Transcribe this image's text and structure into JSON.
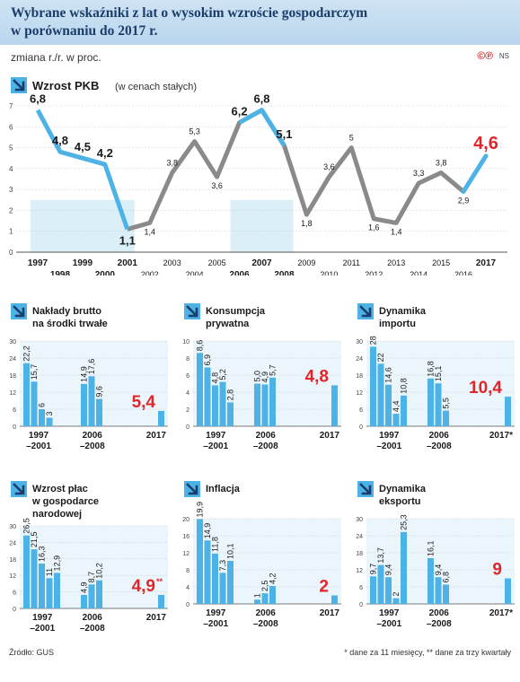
{
  "title_line1": "Wybrane wskaźniki z lat o wysokim wzroście gospodarczym",
  "title_line2": "w porównaniu do 2017 r.",
  "subtitle": "zmiana r./r. w proc.",
  "logo": "©℗",
  "logo_suffix": "NS",
  "source": "Źródło: GUS",
  "footnote": "* dane za 11 miesięcy, ** dane za trzy kwartały",
  "colors": {
    "accent": "#4db3e6",
    "highlight": "#e0262b",
    "gray": "#8a8a8a",
    "title": "#1b3d6b"
  },
  "chart_data": [
    {
      "type": "line",
      "title": "Wzrost PKB",
      "title_note": "(w cenach stałych)",
      "x": [
        "1997",
        "1998",
        "1999",
        "2000",
        "2001",
        "2002",
        "2003",
        "2004",
        "2005",
        "2006",
        "2007",
        "2008",
        "2009",
        "2010",
        "2011",
        "2012",
        "2013",
        "2014",
        "2015",
        "2016",
        "2017"
      ],
      "values": [
        6.8,
        4.8,
        4.5,
        4.2,
        1.1,
        1.4,
        3.8,
        5.3,
        3.6,
        6.2,
        6.8,
        5.1,
        1.8,
        3.6,
        5.0,
        1.6,
        1.4,
        3.3,
        3.8,
        2.9,
        4.6
      ],
      "value_labels": [
        "6,8",
        "4,8",
        "4,5",
        "4,2",
        "1,1",
        "1,4",
        "3,8",
        "5,3",
        "3,6",
        "6,2",
        "6,8",
        "5,1",
        "1,8",
        "3,6",
        "5",
        "1,6",
        "1,4",
        "3,3",
        "3,8",
        "2,9",
        "4,6"
      ],
      "yticks": [
        "0",
        "1",
        "2",
        "3",
        "4",
        "5",
        "6",
        "7"
      ],
      "ylim": [
        0,
        7
      ]
    },
    {
      "type": "bar",
      "title1": "Nakłady brutto",
      "title2": "na środki trwałe",
      "yticks": [
        "0",
        "6",
        "12",
        "18",
        "24",
        "30"
      ],
      "ylim": [
        0,
        30
      ],
      "groups": [
        {
          "label1": "1997",
          "label2": "–2001",
          "values": [
            22.2,
            15.7,
            6,
            3
          ],
          "labels": [
            "22,2",
            "15,7",
            "6",
            "3"
          ]
        },
        {
          "label1": "2006",
          "label2": "–2008",
          "values": [
            14.9,
            17.6,
            9.6
          ],
          "labels": [
            "14,9",
            "17,6",
            "9,6"
          ]
        }
      ],
      "current": {
        "label": "2017",
        "value": 5.4,
        "text": "5,4",
        "mark": ""
      }
    },
    {
      "type": "bar",
      "title1": "Konsumpcja",
      "title2": "prywatna",
      "yticks": [
        "0",
        "2",
        "4",
        "6",
        "8",
        "10"
      ],
      "ylim": [
        0,
        10
      ],
      "groups": [
        {
          "label1": "1997",
          "label2": "–2001",
          "values": [
            8.6,
            6.9,
            4.8,
            5.2,
            2.8
          ],
          "labels": [
            "8,6",
            "6,9",
            "4,8",
            "5,2",
            "2,8"
          ]
        },
        {
          "label1": "2006",
          "label2": "–2008",
          "values": [
            5.0,
            4.9,
            5.7
          ],
          "labels": [
            "5,0",
            "4,9",
            "5,7"
          ]
        }
      ],
      "current": {
        "label": "2017",
        "value": 4.8,
        "text": "4,8",
        "mark": ""
      }
    },
    {
      "type": "bar",
      "title1": "Dynamika",
      "title2": "importu",
      "yticks": [
        "0",
        "6",
        "12",
        "18",
        "24",
        "30"
      ],
      "ylim": [
        0,
        30
      ],
      "groups": [
        {
          "label1": "1997",
          "label2": "–2001",
          "values": [
            28,
            22,
            14.6,
            4.4,
            10.8
          ],
          "labels": [
            "28",
            "22",
            "14,6",
            "4,4",
            "10,8"
          ]
        },
        {
          "label1": "2006",
          "label2": "–2008",
          "values": [
            16.8,
            15.1,
            5.5
          ],
          "labels": [
            "16,8",
            "15,1",
            "5,5"
          ]
        }
      ],
      "current": {
        "label": "2017*",
        "value": 10.4,
        "text": "10,4",
        "mark": ""
      }
    },
    {
      "type": "bar",
      "title1": "Wzrost płac",
      "title2": "w gospodarce",
      "title3": "narodowej",
      "yticks": [
        "0",
        "6",
        "12",
        "18",
        "24",
        "30"
      ],
      "ylim": [
        0,
        30
      ],
      "groups": [
        {
          "label1": "1997",
          "label2": "–2001",
          "values": [
            26.5,
            21.5,
            16.3,
            11,
            12.9
          ],
          "labels": [
            "26,5",
            "21,5",
            "16,3",
            "11",
            "12,9"
          ]
        },
        {
          "label1": "2006",
          "label2": "–2008",
          "values": [
            4.9,
            8.7,
            10.2
          ],
          "labels": [
            "4,9",
            "8,7",
            "10,2"
          ]
        }
      ],
      "current": {
        "label": "2017",
        "value": 4.9,
        "text": "4,9",
        "mark": "**"
      }
    },
    {
      "type": "bar",
      "title1": "Inflacja",
      "title2": "",
      "yticks": [
        "0",
        "4",
        "8",
        "12",
        "16",
        "20"
      ],
      "ylim": [
        0,
        20
      ],
      "groups": [
        {
          "label1": "1997",
          "label2": "–2001",
          "values": [
            19.9,
            14.9,
            11.8,
            7.3,
            10.1
          ],
          "labels": [
            "19,9",
            "14,9",
            "11,8",
            "7,3",
            "10,1"
          ]
        },
        {
          "label1": "2006",
          "label2": "–2008",
          "values": [
            1.0,
            2.5,
            4.2
          ],
          "labels": [
            "1",
            "2,5",
            "4,2"
          ]
        }
      ],
      "current": {
        "label": "2017",
        "value": 2,
        "text": "2",
        "mark": ""
      }
    },
    {
      "type": "bar",
      "title1": "Dynamika",
      "title2": "eksportu",
      "yticks": [
        "0",
        "6",
        "12",
        "18",
        "24",
        "30"
      ],
      "ylim": [
        0,
        30
      ],
      "groups": [
        {
          "label1": "1997",
          "label2": "–2001",
          "values": [
            9.7,
            13.7,
            9.4,
            2,
            25.3
          ],
          "labels": [
            "9,7",
            "13,7",
            "9,4",
            "2",
            "25,3"
          ]
        },
        {
          "label1": "2006",
          "label2": "–2008",
          "values": [
            16.1,
            9.4,
            6.8
          ],
          "labels": [
            "16,1",
            "9,4",
            "6,8"
          ]
        }
      ],
      "current": {
        "label": "2017*",
        "value": 9,
        "text": "9",
        "mark": ""
      }
    }
  ]
}
